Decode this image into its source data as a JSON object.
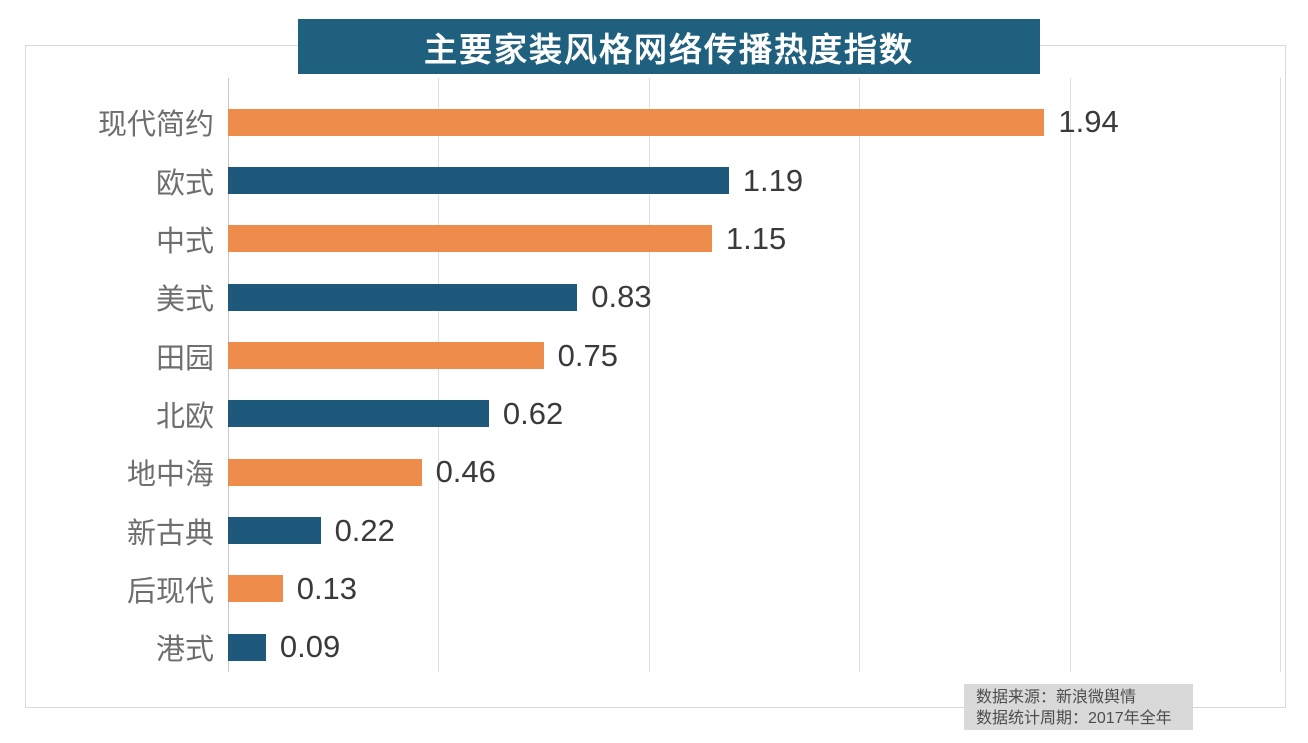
{
  "title": {
    "text": "主要家装风格网络传播热度指数"
  },
  "source": {
    "line1": "数据来源：新浪微舆情",
    "line2": "数据统计周期：2017年全年"
  },
  "colors": {
    "banner_bg": "#20607f",
    "bar_orange": "#ee8d4b",
    "bar_teal": "#1e587a",
    "title_text": "#ffffff",
    "category_label": "#6e6e6e",
    "value_label": "#3a3a3a",
    "frame_border": "#d9d9d9",
    "gridline": "#dedede",
    "source_bg": "#d9d9d9",
    "source_text": "#4d4d4d"
  },
  "chart_data": {
    "type": "bar",
    "orientation": "horizontal",
    "title": "主要家装风格网络传播热度指数",
    "categories": [
      "现代简约",
      "欧式",
      "中式",
      "美式",
      "田园",
      "北欧",
      "地中海",
      "新古典",
      "后现代",
      "港式"
    ],
    "values": [
      1.94,
      1.19,
      1.15,
      0.83,
      0.75,
      0.62,
      0.46,
      0.22,
      0.13,
      0.09
    ],
    "value_labels": [
      "1.94",
      "1.19",
      "1.15",
      "0.83",
      "0.75",
      "0.62",
      "0.46",
      "0.22",
      "0.13",
      "0.09"
    ],
    "xlabel": "",
    "ylabel": "",
    "xlim": [
      0,
      2.5
    ],
    "gridline_interval": 0.5,
    "grid": true,
    "axis_tick_labels_visible": false,
    "legend": "none",
    "bar_colors_alternating": [
      "#ee8d4b",
      "#1e587a"
    ],
    "source_note": [
      "数据来源：新浪微舆情",
      "数据统计周期：2017年全年"
    ]
  }
}
